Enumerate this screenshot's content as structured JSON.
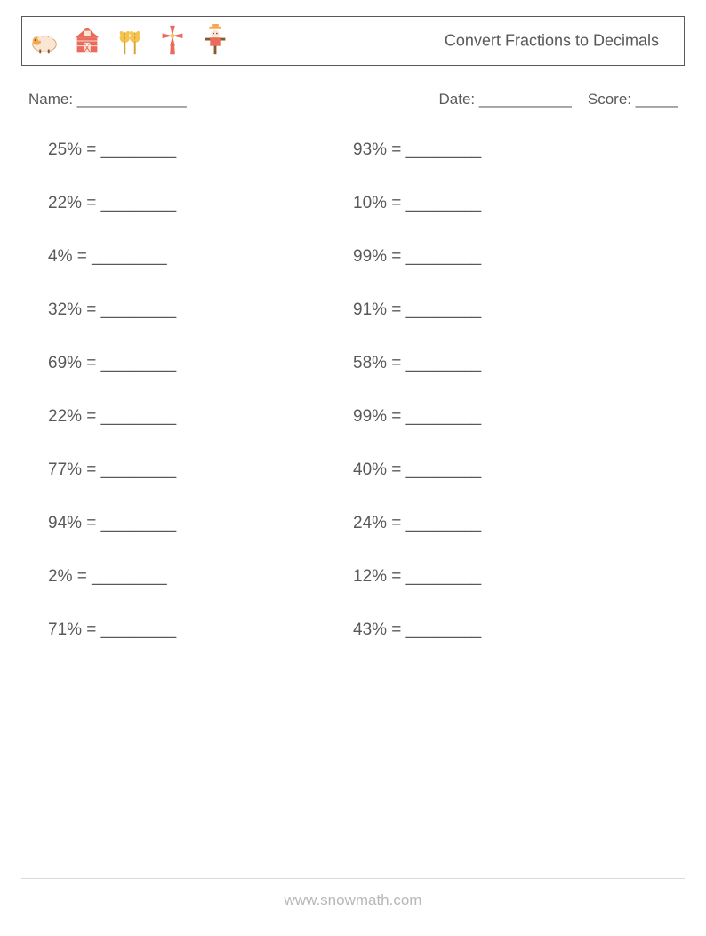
{
  "header": {
    "title": "Convert Fractions to Decimals"
  },
  "info": {
    "name_label": "Name:",
    "name_blank": " _____________",
    "date_label": "Date:",
    "date_blank": " ___________",
    "score_label": "Score:",
    "score_blank": " _____"
  },
  "problems": {
    "blank": "________",
    "columns": [
      [
        "25%",
        "22%",
        "4%",
        "32%",
        "69%",
        "22%",
        "77%",
        "94%",
        "2%",
        "71%"
      ],
      [
        "93%",
        "10%",
        "99%",
        "91%",
        "58%",
        "99%",
        "40%",
        "24%",
        "12%",
        "43%"
      ]
    ]
  },
  "footer": {
    "text": "www.snowmath.com"
  },
  "colors": {
    "text": "#595959",
    "border": "#595959",
    "footer": "#b8b8b8",
    "orange": "#f4a94e",
    "red": "#e86b5c",
    "yellow": "#f5c44e",
    "brown": "#8b5a2b"
  }
}
